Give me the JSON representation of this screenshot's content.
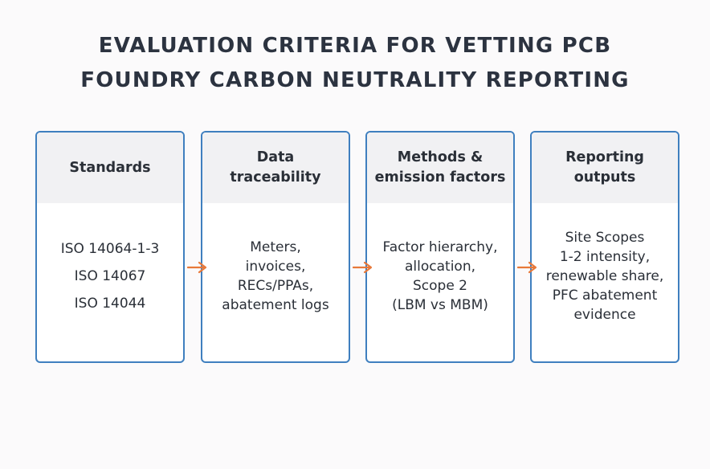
{
  "title": {
    "line1": "EVALUATION CRITERIA FOR VETTING PCB",
    "line2": "FOUNDRY CARBON NEUTRALITY REPORTING"
  },
  "cards": [
    {
      "heading": [
        "Standards"
      ],
      "body": [
        "ISO 14064-1-3",
        "ISO 14067",
        "ISO 14044"
      ]
    },
    {
      "heading": [
        "Data",
        "traceability"
      ],
      "body": [
        "Meters,",
        "invoices,",
        "RECs/PPAs,",
        "abatement logs"
      ]
    },
    {
      "heading": [
        "Methods &",
        "emission factors"
      ],
      "body": [
        "Factor hierarchy,",
        "allocation,",
        "Scope 2",
        "(LBM vs MBM)"
      ]
    },
    {
      "heading": [
        "Reporting",
        "outputs"
      ],
      "body": [
        "Site Scopes",
        "1-2 intensity,",
        "renewable share,",
        "PFC abatement",
        "evidence"
      ]
    }
  ],
  "colors": {
    "card_border": "#3f7fbf",
    "arrow": "#e8793a",
    "header_fill": "#f1f1f3"
  },
  "icons": [
    "arrow-right-icon",
    "arrow-right-icon",
    "arrow-right-icon"
  ]
}
